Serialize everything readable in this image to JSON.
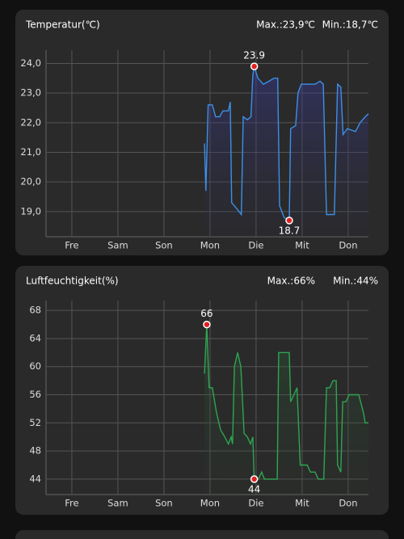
{
  "chart_data": [
    {
      "type": "line",
      "title": "Temperatur(℃)",
      "max_label": "Max.:23,9℃",
      "min_label": "Min.:18,7℃",
      "color": "#3d8fe6",
      "area": true,
      "grid": true,
      "x": [
        3.88,
        3.91,
        3.96,
        4.05,
        4.12,
        4.21,
        4.28,
        4.4,
        4.44,
        4.47,
        4.58,
        4.68,
        4.72,
        4.81,
        4.89,
        4.93,
        4.96,
        5.04,
        5.16,
        5.28,
        5.39,
        5.47,
        5.51,
        5.61,
        5.72,
        5.75,
        5.86,
        5.91,
        5.98,
        6.07,
        6.28,
        6.39,
        6.46,
        6.53,
        6.7,
        6.77,
        6.84,
        6.89,
        6.98,
        7.16,
        7.26,
        7.37,
        7.44
      ],
      "values": [
        21.3,
        19.7,
        22.6,
        22.6,
        22.2,
        22.2,
        22.4,
        22.4,
        22.7,
        19.3,
        19.1,
        18.9,
        22.2,
        22.1,
        22.2,
        23.6,
        23.9,
        23.5,
        23.3,
        23.4,
        23.5,
        23.5,
        19.2,
        18.8,
        18.7,
        21.8,
        21.9,
        23.0,
        23.3,
        23.3,
        23.3,
        23.4,
        23.3,
        18.9,
        18.9,
        23.3,
        23.2,
        21.6,
        21.8,
        21.7,
        22.0,
        22.2,
        22.3
      ],
      "markers": [
        {
          "x": 4.96,
          "value": 23.9
        },
        {
          "x": 5.72,
          "value": 18.7
        }
      ],
      "xlim": [
        0.44,
        7.44
      ],
      "xticks": [
        {
          "value": 1,
          "label": "Fre"
        },
        {
          "value": 2,
          "label": "Sam"
        },
        {
          "value": 3,
          "label": "Son"
        },
        {
          "value": 4,
          "label": "Mon"
        },
        {
          "value": 5,
          "label": "Die"
        },
        {
          "value": 6,
          "label": "Mit"
        },
        {
          "value": 7,
          "label": "Don"
        }
      ],
      "ylim": [
        18.15,
        24.45
      ],
      "yticks": [
        {
          "value": 19,
          "label": "19,0"
        },
        {
          "value": 20,
          "label": "20,0"
        },
        {
          "value": 21,
          "label": "21,0"
        },
        {
          "value": 22,
          "label": "22,0"
        },
        {
          "value": 23,
          "label": "23,0"
        },
        {
          "value": 24,
          "label": "24,0"
        }
      ]
    },
    {
      "type": "line",
      "title": "Luftfeuchtigkeit(%)",
      "max_label": "Max.:66%",
      "min_label": "Min.:44%",
      "color": "#2fa551",
      "area": true,
      "grid": true,
      "x": [
        3.88,
        3.93,
        3.98,
        4.05,
        4.14,
        4.23,
        4.32,
        4.4,
        4.46,
        4.49,
        4.53,
        4.6,
        4.67,
        4.74,
        4.81,
        4.88,
        4.93,
        4.96,
        5.05,
        5.12,
        5.18,
        5.46,
        5.49,
        5.58,
        5.72,
        5.75,
        5.82,
        5.89,
        5.96,
        6.11,
        6.18,
        6.28,
        6.35,
        6.47,
        6.53,
        6.6,
        6.67,
        6.74,
        6.77,
        6.84,
        6.88,
        6.95,
        7.02,
        7.23,
        7.33,
        7.37,
        7.44
      ],
      "values": [
        59,
        66,
        57,
        57,
        53.5,
        51,
        50,
        49,
        50,
        49,
        60,
        62,
        60,
        50.5,
        50,
        49,
        50,
        44,
        44,
        45,
        44,
        44,
        62,
        62,
        62,
        55,
        56,
        57,
        46,
        46,
        45,
        45,
        44,
        44,
        57,
        57,
        58,
        58,
        46,
        45,
        55,
        55,
        56,
        56,
        53.5,
        52,
        52
      ],
      "markers": [
        {
          "x": 3.93,
          "value": 66
        },
        {
          "x": 4.96,
          "value": 44
        }
      ],
      "xlim": [
        0.44,
        7.44
      ],
      "xticks": [
        {
          "value": 1,
          "label": "Fre"
        },
        {
          "value": 2,
          "label": "Sam"
        },
        {
          "value": 3,
          "label": "Son"
        },
        {
          "value": 4,
          "label": "Mon"
        },
        {
          "value": 5,
          "label": "Die"
        },
        {
          "value": 6,
          "label": "Mit"
        },
        {
          "value": 7,
          "label": "Don"
        }
      ],
      "ylim": [
        41.8,
        69.4
      ],
      "yticks": [
        44,
        48,
        52,
        56,
        60,
        64,
        68
      ]
    }
  ]
}
